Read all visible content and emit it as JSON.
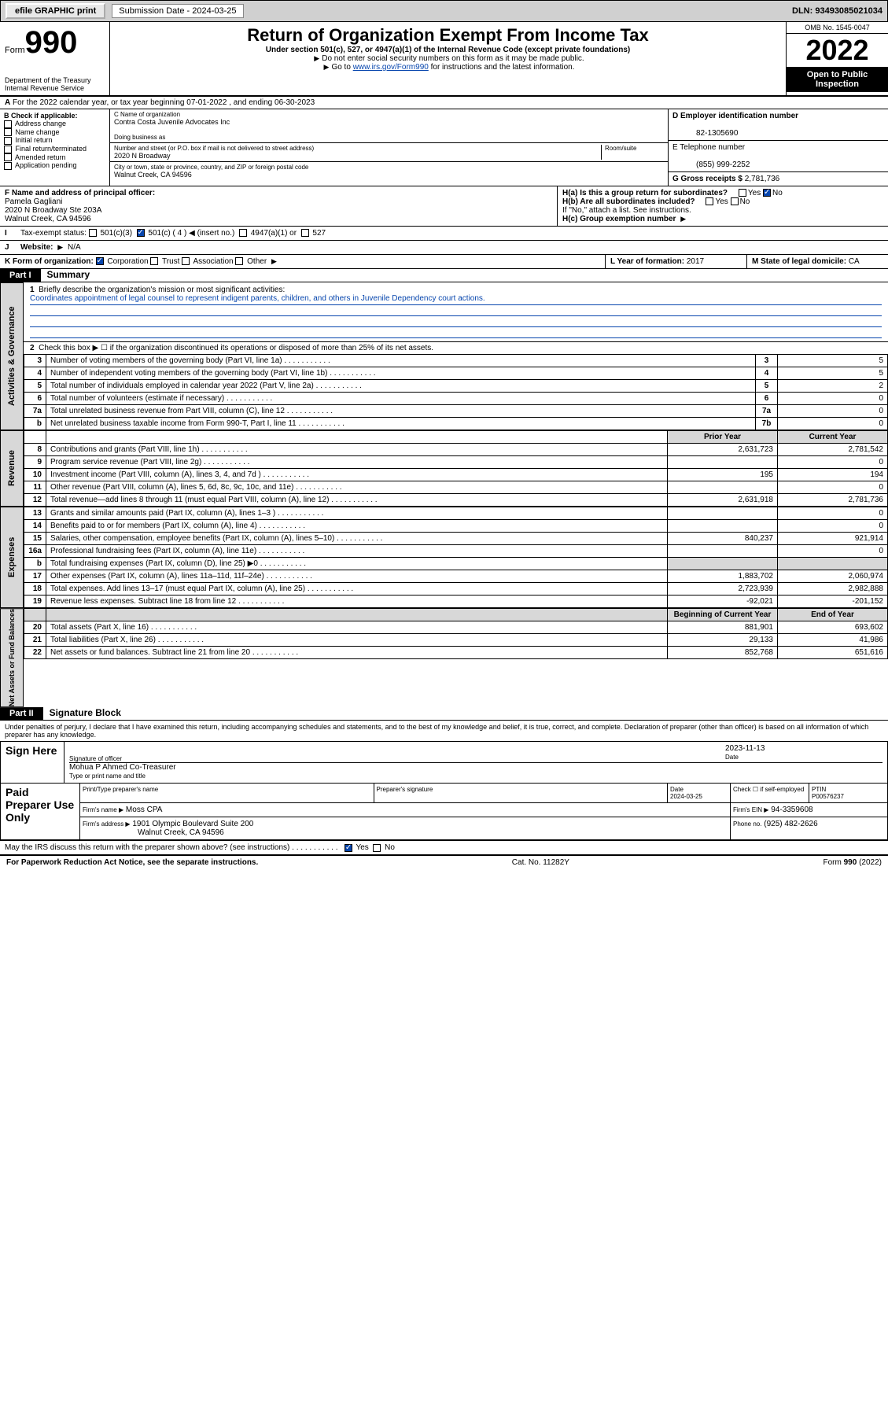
{
  "header_bar": {
    "efile": "efile GRAPHIC print",
    "sub_label": "Submission Date - 2024-03-25",
    "dln": "DLN: 93493085021034"
  },
  "form_title": {
    "form_prefix": "Form",
    "form_num": "990",
    "title": "Return of Organization Exempt From Income Tax",
    "subtitle": "Under section 501(c), 527, or 4947(a)(1) of the Internal Revenue Code (except private foundations)",
    "instr1": "Do not enter social security numbers on this form as it may be made public.",
    "instr2_pre": "Go to ",
    "instr2_link": "www.irs.gov/Form990",
    "instr2_post": " for instructions and the latest information.",
    "dept": "Department of the Treasury",
    "irs": "Internal Revenue Service",
    "omb": "OMB No. 1545-0047",
    "year": "2022",
    "inspect": "Open to Public Inspection"
  },
  "section_a": "For the 2022 calendar year, or tax year beginning 07-01-2022   , and ending 06-30-2023",
  "section_b": {
    "head": "B Check if applicable:",
    "items": [
      "Address change",
      "Name change",
      "Initial return",
      "Final return/terminated",
      "Amended return",
      "Application pending"
    ]
  },
  "section_c": {
    "name_label": "C Name of organization",
    "name": "Contra Costa Juvenile Advocates Inc",
    "dba_label": "Doing business as",
    "dba": "",
    "addr_label": "Number and street (or P.O. box if mail is not delivered to street address)",
    "room_label": "Room/suite",
    "addr": "2020 N Broadway",
    "city_label": "City or town, state or province, country, and ZIP or foreign postal code",
    "city": "Walnut Creek, CA  94596"
  },
  "section_d": {
    "label": "D Employer identification number",
    "value": "82-1305690"
  },
  "section_e": {
    "label": "E Telephone number",
    "value": "(855) 999-2252"
  },
  "section_g": {
    "label": "G Gross receipts $ ",
    "value": "2,781,736"
  },
  "section_f": {
    "label": "F Name and address of principal officer:",
    "name": "Pamela Gagliani",
    "addr1": "2020 N Broadway Ste 203A",
    "addr2": "Walnut Creek, CA  94596"
  },
  "section_h": {
    "ha": "H(a)  Is this a group return for subordinates?",
    "hb": "H(b)  Are all subordinates included?",
    "hb_note": "If \"No,\" attach a list. See instructions.",
    "hc": "H(c)  Group exemption number",
    "yes": "Yes",
    "no": "No"
  },
  "section_i": {
    "label": "Tax-exempt status:",
    "c3": "501(c)(3)",
    "c4": "501(c) ( 4 )",
    "insert": "(insert no.)",
    "a1": "4947(a)(1) or",
    "s527": "527"
  },
  "section_j": {
    "label": "Website:",
    "value": "N/A"
  },
  "section_k": {
    "label": "K Form of organization:",
    "corp": "Corporation",
    "trust": "Trust",
    "assoc": "Association",
    "other": "Other"
  },
  "section_l": {
    "label": "L Year of formation: ",
    "value": "2017"
  },
  "section_m": {
    "label": "M State of legal domicile: ",
    "value": "CA"
  },
  "part1": {
    "header": "Part I",
    "title": "Summary",
    "q1_label": "Briefly describe the organization's mission or most significant activities:",
    "q1_text": "Coordinates appointment of legal counsel to represent indigent parents, children, and others in Juvenile Dependency court actions.",
    "q2": "Check this box ▶ ☐ if the organization discontinued its operations or disposed of more than 25% of its net assets.",
    "rows_gov": [
      {
        "n": "3",
        "text": "Number of voting members of the governing body (Part VI, line 1a)",
        "box": "3",
        "val": "5"
      },
      {
        "n": "4",
        "text": "Number of independent voting members of the governing body (Part VI, line 1b)",
        "box": "4",
        "val": "5"
      },
      {
        "n": "5",
        "text": "Total number of individuals employed in calendar year 2022 (Part V, line 2a)",
        "box": "5",
        "val": "2"
      },
      {
        "n": "6",
        "text": "Total number of volunteers (estimate if necessary)",
        "box": "6",
        "val": "0"
      },
      {
        "n": "7a",
        "text": "Total unrelated business revenue from Part VIII, column (C), line 12",
        "box": "7a",
        "val": "0"
      },
      {
        "n": "b",
        "text": "Net unrelated business taxable income from Form 990-T, Part I, line 11",
        "box": "7b",
        "val": "0"
      }
    ],
    "col_prior": "Prior Year",
    "col_current": "Current Year",
    "rows_rev": [
      {
        "n": "8",
        "text": "Contributions and grants (Part VIII, line 1h)",
        "p": "2,631,723",
        "c": "2,781,542"
      },
      {
        "n": "9",
        "text": "Program service revenue (Part VIII, line 2g)",
        "p": "",
        "c": "0"
      },
      {
        "n": "10",
        "text": "Investment income (Part VIII, column (A), lines 3, 4, and 7d )",
        "p": "195",
        "c": "194"
      },
      {
        "n": "11",
        "text": "Other revenue (Part VIII, column (A), lines 5, 6d, 8c, 9c, 10c, and 11e)",
        "p": "",
        "c": "0"
      },
      {
        "n": "12",
        "text": "Total revenue—add lines 8 through 11 (must equal Part VIII, column (A), line 12)",
        "p": "2,631,918",
        "c": "2,781,736"
      }
    ],
    "rows_exp": [
      {
        "n": "13",
        "text": "Grants and similar amounts paid (Part IX, column (A), lines 1–3 )",
        "p": "",
        "c": "0"
      },
      {
        "n": "14",
        "text": "Benefits paid to or for members (Part IX, column (A), line 4)",
        "p": "",
        "c": "0"
      },
      {
        "n": "15",
        "text": "Salaries, other compensation, employee benefits (Part IX, column (A), lines 5–10)",
        "p": "840,237",
        "c": "921,914"
      },
      {
        "n": "16a",
        "text": "Professional fundraising fees (Part IX, column (A), line 11e)",
        "p": "",
        "c": "0"
      },
      {
        "n": "b",
        "text": "Total fundraising expenses (Part IX, column (D), line 25) ▶0",
        "p": "gray",
        "c": "gray"
      },
      {
        "n": "17",
        "text": "Other expenses (Part IX, column (A), lines 11a–11d, 11f–24e)",
        "p": "1,883,702",
        "c": "2,060,974"
      },
      {
        "n": "18",
        "text": "Total expenses. Add lines 13–17 (must equal Part IX, column (A), line 25)",
        "p": "2,723,939",
        "c": "2,982,888"
      },
      {
        "n": "19",
        "text": "Revenue less expenses. Subtract line 18 from line 12",
        "p": "-92,021",
        "c": "-201,152"
      }
    ],
    "col_begin": "Beginning of Current Year",
    "col_end": "End of Year",
    "rows_net": [
      {
        "n": "20",
        "text": "Total assets (Part X, line 16)",
        "p": "881,901",
        "c": "693,602"
      },
      {
        "n": "21",
        "text": "Total liabilities (Part X, line 26)",
        "p": "29,133",
        "c": "41,986"
      },
      {
        "n": "22",
        "text": "Net assets or fund balances. Subtract line 21 from line 20",
        "p": "852,768",
        "c": "651,616"
      }
    ]
  },
  "part2": {
    "header": "Part II",
    "title": "Signature Block",
    "penalty": "Under penalties of perjury, I declare that I have examined this return, including accompanying schedules and statements, and to the best of my knowledge and belief, it is true, correct, and complete. Declaration of preparer (other than officer) is based on all information of which preparer has any knowledge.",
    "sign_here": "Sign Here",
    "sig_officer": "Signature of officer",
    "sig_date": "Date",
    "sig_date_val": "2023-11-13",
    "sig_name": "Mohua P Ahmed Co-Treasurer",
    "sig_name_label": "Type or print name and title",
    "paid": "Paid Preparer Use Only",
    "prep_name_label": "Print/Type preparer's name",
    "prep_sig_label": "Preparer's signature",
    "prep_date_label": "Date",
    "prep_date": "2024-03-25",
    "prep_self": "Check ☐ if self-employed",
    "ptin_label": "PTIN",
    "ptin": "P00576237",
    "firm_name_label": "Firm's name  ▶",
    "firm_name": "Moss CPA",
    "firm_ein_label": "Firm's EIN ▶",
    "firm_ein": "94-3359608",
    "firm_addr_label": "Firm's address ▶",
    "firm_addr1": "1901 Olympic Boulevard Suite 200",
    "firm_addr2": "Walnut Creek, CA  94596",
    "phone_label": "Phone no.",
    "phone": "(925) 482-2626",
    "discuss": "May the IRS discuss this return with the preparer shown above? (see instructions)",
    "discuss_yes": "Yes",
    "discuss_no": "No"
  },
  "footer": {
    "left": "For Paperwork Reduction Act Notice, see the separate instructions.",
    "mid": "Cat. No. 11282Y",
    "right": "Form 990 (2022)"
  },
  "side_labels": {
    "gov": "Activities & Governance",
    "rev": "Revenue",
    "exp": "Expenses",
    "net": "Net Assets or Fund Balances"
  }
}
